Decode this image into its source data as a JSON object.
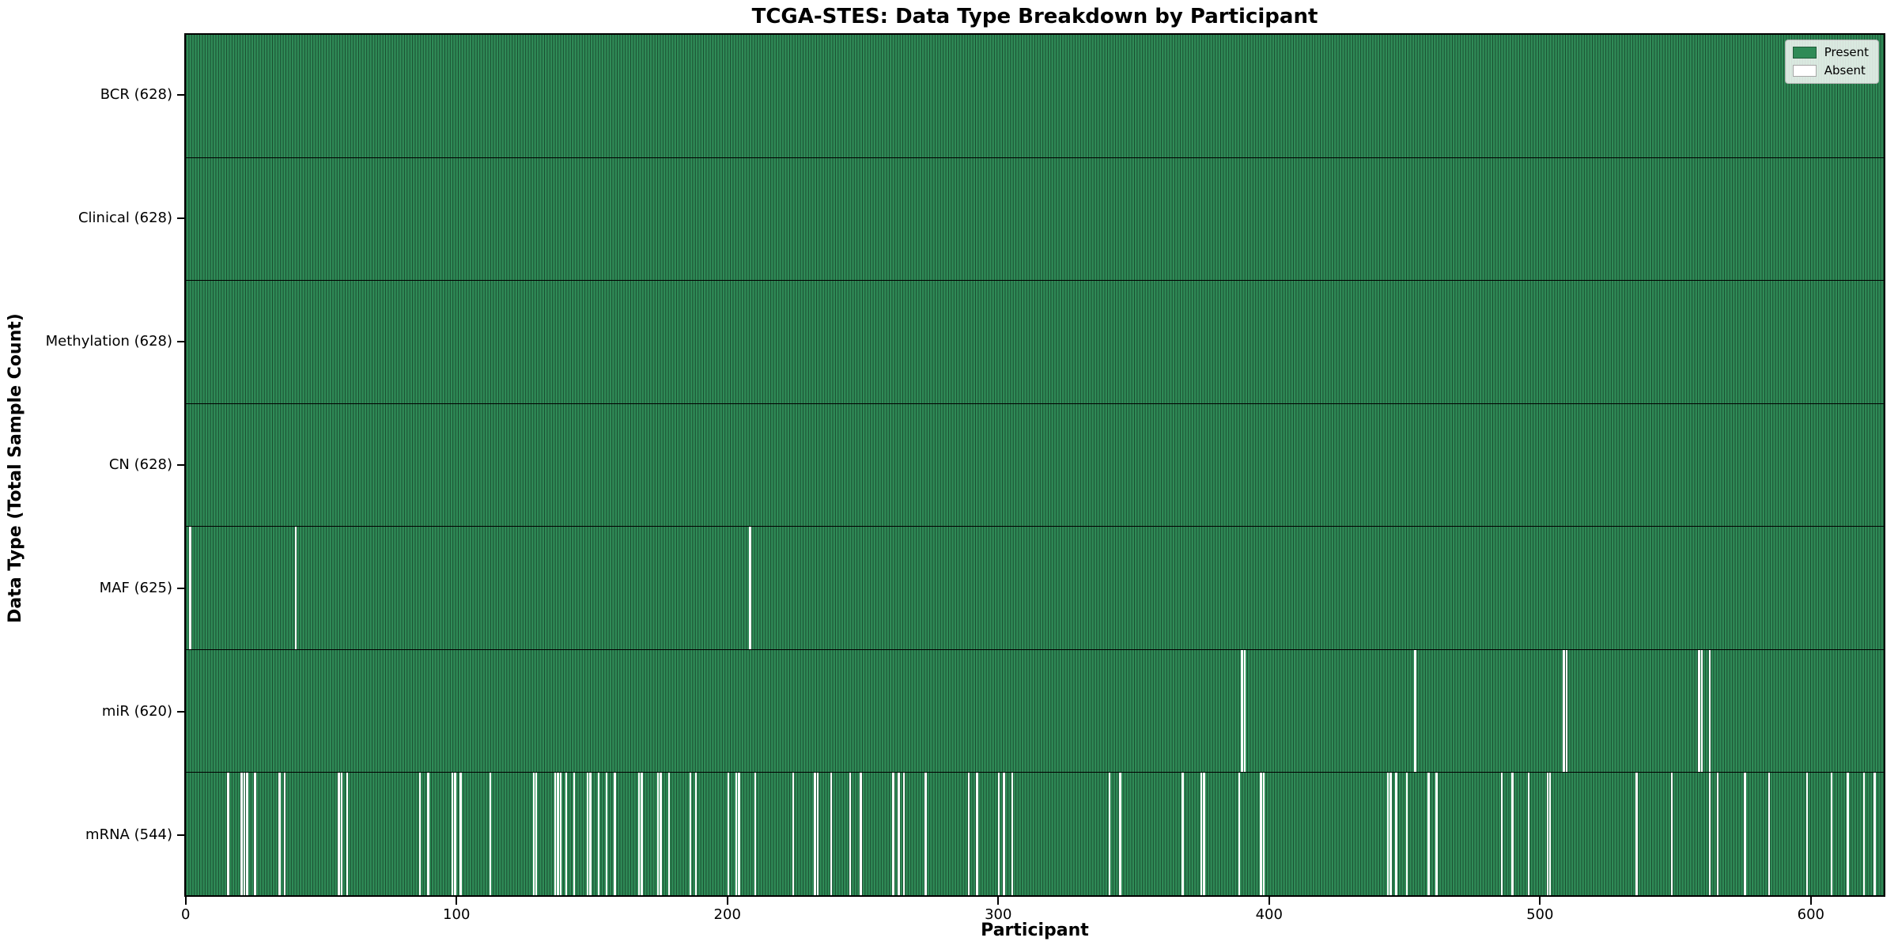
{
  "chart_data": {
    "type": "heatmap",
    "title": "TCGA-STES: Data Type Breakdown by Participant",
    "xlabel": "Participant",
    "ylabel": "Data Type (Total Sample Count)",
    "n_participants": 628,
    "x_ticks": [
      0,
      100,
      200,
      300,
      400,
      500,
      600
    ],
    "grid": false,
    "colors": {
      "present": "#2f8b57",
      "absent": "#ffffff",
      "bar_edge": "rgba(0,0,0,0.45)",
      "spine": "#000000"
    },
    "legend": {
      "position": "upper right",
      "entries": [
        {
          "label": "Present",
          "color": "#2f8b57"
        },
        {
          "label": "Absent",
          "color": "#ffffff"
        }
      ]
    },
    "rows": [
      {
        "label": "BCR",
        "total": 628,
        "display": "BCR (628)",
        "absent": []
      },
      {
        "label": "Clinical",
        "total": 628,
        "display": "Clinical (628)",
        "absent": []
      },
      {
        "label": "Methylation",
        "total": 628,
        "display": "Methylation (628)",
        "absent": []
      },
      {
        "label": "CN",
        "total": 628,
        "display": "CN (628)",
        "absent": []
      },
      {
        "label": "MAF",
        "total": 625,
        "display": "MAF (625)",
        "absent": [
          1,
          40,
          208
        ]
      },
      {
        "label": "miR",
        "total": 620,
        "display": "miR (620)",
        "absent": [
          390,
          391,
          454,
          509,
          510,
          559,
          560,
          563
        ]
      },
      {
        "label": "mRNA",
        "total": 544,
        "display": "mRNA (544)",
        "absent": [
          15,
          20,
          21,
          22,
          25,
          34,
          36,
          56,
          57,
          59,
          86,
          89,
          98,
          99,
          101,
          112,
          128,
          129,
          136,
          137,
          138,
          140,
          143,
          148,
          149,
          152,
          155,
          158,
          167,
          168,
          174,
          175,
          178,
          186,
          188,
          200,
          203,
          204,
          210,
          224,
          232,
          233,
          238,
          245,
          249,
          261,
          263,
          265,
          273,
          289,
          292,
          300,
          302,
          305,
          341,
          345,
          368,
          375,
          376,
          389,
          397,
          398,
          444,
          445,
          447,
          451,
          459,
          462,
          486,
          490,
          496,
          503,
          504,
          536,
          549,
          563,
          566,
          576,
          585,
          599,
          608,
          614,
          620,
          624
        ]
      }
    ]
  }
}
